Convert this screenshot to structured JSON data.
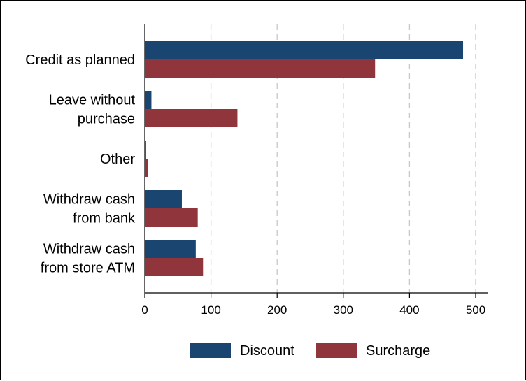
{
  "chart_data": {
    "type": "bar",
    "orientation": "horizontal",
    "categories": [
      [
        "Credit as planned"
      ],
      [
        "Leave without",
        "purchase"
      ],
      [
        "Other"
      ],
      [
        "Withdraw cash",
        "from bank"
      ],
      [
        "Withdraw cash",
        "from store ATM"
      ]
    ],
    "series": [
      {
        "name": "Discount",
        "color": "#1a4571",
        "values": [
          481,
          10,
          2,
          56,
          77
        ]
      },
      {
        "name": "Surcharge",
        "color": "#90353b",
        "values": [
          348,
          140,
          5,
          80,
          88
        ]
      }
    ],
    "xlim": [
      0,
      520
    ],
    "xticks": [
      0,
      100,
      200,
      300,
      400,
      500
    ],
    "grid": "vertical dashed",
    "legend": "bottom"
  }
}
